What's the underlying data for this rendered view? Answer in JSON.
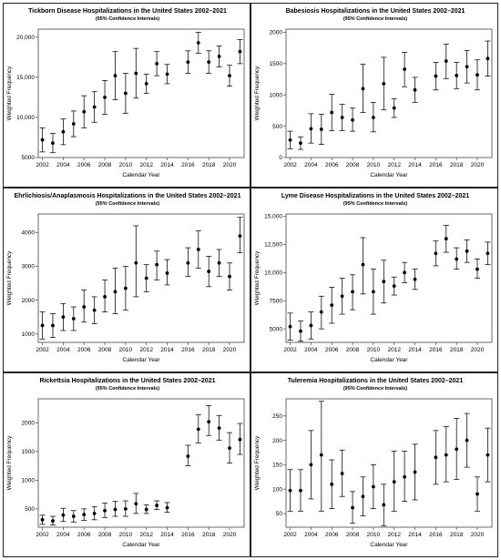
{
  "chart_data": [
    {
      "type": "scatter",
      "title": "Tickborn Disease Hospitalizations in the United States 2002–2021",
      "subtitle": "(95% Confidence Intervals)",
      "xlabel": "Calendar Year",
      "ylabel": "Weighted Frequency",
      "xlim": [
        2001.6,
        2021.4
      ],
      "ylim": [
        5000,
        21000
      ],
      "xticks": [
        2002,
        2004,
        2006,
        2008,
        2010,
        2012,
        2014,
        2016,
        2018,
        2020
      ],
      "yticks": [
        5000,
        10000,
        15000,
        20000
      ],
      "ytick_labels": [
        "5000",
        "10,000",
        "15,000",
        "20,000"
      ],
      "x": [
        2002,
        2003,
        2004,
        2005,
        2006,
        2007,
        2008,
        2009,
        2010,
        2011,
        2012,
        2013,
        2014,
        2016,
        2017,
        2018,
        2019,
        2020,
        2021
      ],
      "y": [
        7200,
        6800,
        8200,
        9200,
        10700,
        11300,
        12500,
        15200,
        13000,
        15500,
        14200,
        16700,
        15400,
        16900,
        19300,
        16900,
        17600,
        15200,
        18200
      ],
      "lower": [
        5700,
        5600,
        6600,
        7600,
        8700,
        9400,
        10400,
        12200,
        10500,
        12400,
        13000,
        15200,
        14200,
        15500,
        18000,
        15500,
        16300,
        13900,
        16700
      ],
      "upper": [
        8700,
        8000,
        9800,
        10800,
        12700,
        13200,
        14600,
        18200,
        15500,
        18600,
        15400,
        18200,
        16600,
        18300,
        20600,
        18300,
        18900,
        16500,
        19700
      ]
    },
    {
      "type": "scatter",
      "title": "Babesiosis  Hospitalizations in the United States 2002–2021",
      "subtitle": "(95% Confidence Intervals)",
      "xlabel": "Calendar Year",
      "ylabel": "Weighted Frequency",
      "xlim": [
        2001.6,
        2021.4
      ],
      "ylim": [
        0,
        2050
      ],
      "xticks": [
        2002,
        2004,
        2006,
        2008,
        2010,
        2012,
        2014,
        2016,
        2018,
        2020
      ],
      "yticks": [
        0,
        500,
        1000,
        1500,
        2000
      ],
      "ytick_labels": [
        "0",
        "500",
        "1000",
        "1500",
        "2000"
      ],
      "x": [
        2002,
        2003,
        2004,
        2005,
        2006,
        2007,
        2008,
        2009,
        2010,
        2011,
        2012,
        2013,
        2014,
        2016,
        2017,
        2018,
        2019,
        2020,
        2021
      ],
      "y": [
        280,
        230,
        460,
        450,
        720,
        640,
        600,
        1100,
        640,
        1180,
        790,
        1410,
        1080,
        1300,
        1540,
        1310,
        1450,
        1320,
        1580
      ],
      "lower": [
        140,
        130,
        230,
        210,
        430,
        430,
        420,
        720,
        410,
        760,
        640,
        1130,
        880,
        1080,
        1260,
        1100,
        1190,
        1080,
        1300
      ],
      "upper": [
        420,
        330,
        700,
        690,
        1010,
        850,
        790,
        1490,
        880,
        1600,
        940,
        1680,
        1280,
        1520,
        1810,
        1520,
        1710,
        1560,
        1860
      ]
    },
    {
      "type": "scatter",
      "title": "Ehrlichiosis/Anaplasmosis Hospitalizations in the United States 2002–2021",
      "subtitle": "(95% Confidence Intervals)",
      "xlabel": "Calendar Year",
      "ylabel": "Weighted Frequency",
      "xlim": [
        2001.6,
        2021.4
      ],
      "ylim": [
        750,
        4550
      ],
      "xticks": [
        2002,
        2004,
        2006,
        2008,
        2010,
        2012,
        2014,
        2016,
        2018,
        2020
      ],
      "yticks": [
        1000,
        2000,
        3000,
        4000
      ],
      "ytick_labels": [
        "1000",
        "2000",
        "3000",
        "4000"
      ],
      "x": [
        2002,
        2003,
        2004,
        2005,
        2006,
        2007,
        2008,
        2009,
        2010,
        2011,
        2012,
        2013,
        2014,
        2016,
        2017,
        2018,
        2019,
        2020,
        2021
      ],
      "y": [
        1250,
        1250,
        1500,
        1450,
        1800,
        1700,
        2100,
        2250,
        2350,
        3100,
        2650,
        3050,
        2800,
        3100,
        3500,
        2850,
        3100,
        2700,
        3900
      ],
      "lower": [
        850,
        900,
        1100,
        1100,
        1350,
        1300,
        1650,
        1600,
        1700,
        2100,
        2250,
        2600,
        2450,
        2700,
        2950,
        2400,
        2700,
        2300,
        3400
      ],
      "upper": [
        1650,
        1600,
        1900,
        1800,
        2300,
        2100,
        2600,
        2950,
        3000,
        4200,
        3050,
        3450,
        3200,
        3550,
        4050,
        3300,
        3500,
        3100,
        4450
      ]
    },
    {
      "type": "scatter",
      "title": "Lyme Disease Hospitalizations in the United States 2002–2021",
      "subtitle": "(95% Confidence Intervals)",
      "xlabel": "Calendar Year",
      "ylabel": "Weighted Frequency",
      "xlim": [
        2001.6,
        2021.4
      ],
      "ylim": [
        3800,
        15200
      ],
      "xticks": [
        2002,
        2004,
        2006,
        2008,
        2010,
        2012,
        2014,
        2016,
        2018,
        2020
      ],
      "yticks": [
        5000,
        7500,
        10000,
        12500,
        15000
      ],
      "ytick_labels": [
        "5000",
        "7500",
        "10,000",
        "12,500",
        "15,000"
      ],
      "x": [
        2002,
        2003,
        2004,
        2005,
        2006,
        2007,
        2008,
        2009,
        2010,
        2011,
        2012,
        2013,
        2014,
        2016,
        2017,
        2018,
        2019,
        2020,
        2021
      ],
      "y": [
        5200,
        4800,
        5300,
        6500,
        7100,
        7900,
        8300,
        10700,
        8300,
        9200,
        8800,
        10000,
        9400,
        11700,
        13000,
        11200,
        11900,
        10300,
        11700
      ],
      "lower": [
        4000,
        3900,
        4100,
        5000,
        5500,
        6300,
        6700,
        8100,
        6300,
        7300,
        8000,
        9100,
        8500,
        10600,
        11800,
        10300,
        10900,
        9500,
        10700
      ],
      "upper": [
        6400,
        5700,
        6500,
        7900,
        8700,
        9500,
        9800,
        13100,
        10300,
        11100,
        9600,
        10900,
        10300,
        12800,
        14200,
        12200,
        12900,
        11200,
        12700
      ]
    },
    {
      "type": "scatter",
      "title": "Rickettsia Hospitalizations in the United States 2002–2021",
      "subtitle": "(95% Confidence Intervals)",
      "xlabel": "Calendar Year",
      "ylabel": "Weighted Frequency",
      "xlim": [
        2001.6,
        2021.4
      ],
      "ylim": [
        180,
        2420
      ],
      "xticks": [
        2002,
        2004,
        2006,
        2008,
        2010,
        2012,
        2014,
        2016,
        2018,
        2020
      ],
      "yticks": [
        500,
        1000,
        1500,
        2000
      ],
      "ytick_labels": [
        "500",
        "1000",
        "1500",
        "2000"
      ],
      "x": [
        2002,
        2003,
        2004,
        2005,
        2006,
        2007,
        2008,
        2009,
        2010,
        2011,
        2012,
        2013,
        2014,
        2016,
        2017,
        2018,
        2019,
        2020,
        2021
      ],
      "y": [
        310,
        290,
        390,
        370,
        400,
        420,
        470,
        490,
        500,
        590,
        490,
        560,
        520,
        1420,
        1890,
        2020,
        1910,
        1560,
        1710
      ],
      "lower": [
        230,
        220,
        280,
        270,
        300,
        310,
        350,
        370,
        370,
        420,
        420,
        490,
        440,
        1250,
        1650,
        1780,
        1700,
        1300,
        1450
      ],
      "upper": [
        390,
        370,
        510,
        470,
        500,
        540,
        600,
        630,
        640,
        770,
        570,
        640,
        610,
        1610,
        2140,
        2300,
        2130,
        1830,
        1990
      ]
    },
    {
      "type": "scatter",
      "title": "Tuleremia Hospitalizations in the United States 2002–2021",
      "subtitle": "(95% Confidence Intervals)",
      "xlabel": "Calendar Year",
      "ylabel": "Weighted Frequency",
      "xlim": [
        2001.6,
        2021.4
      ],
      "ylim": [
        22,
        285
      ],
      "xticks": [
        2002,
        2004,
        2006,
        2008,
        2010,
        2012,
        2014,
        2016,
        2018,
        2020
      ],
      "yticks": [
        50,
        100,
        150,
        200,
        250
      ],
      "ytick_labels": [
        "50",
        "100",
        "150",
        "200",
        "250"
      ],
      "x": [
        2002,
        2003,
        2004,
        2005,
        2006,
        2007,
        2008,
        2009,
        2010,
        2011,
        2012,
        2013,
        2014,
        2016,
        2017,
        2018,
        2019,
        2020,
        2021
      ],
      "y": [
        97,
        97,
        150,
        170,
        110,
        132,
        62,
        85,
        105,
        68,
        115,
        125,
        135,
        165,
        170,
        182,
        200,
        90,
        170
      ],
      "lower": [
        55,
        55,
        80,
        55,
        60,
        85,
        30,
        45,
        60,
        25,
        55,
        75,
        78,
        110,
        115,
        120,
        145,
        55,
        115
      ],
      "upper": [
        140,
        140,
        220,
        280,
        160,
        180,
        95,
        125,
        150,
        110,
        178,
        178,
        192,
        220,
        228,
        245,
        255,
        125,
        225
      ]
    }
  ]
}
